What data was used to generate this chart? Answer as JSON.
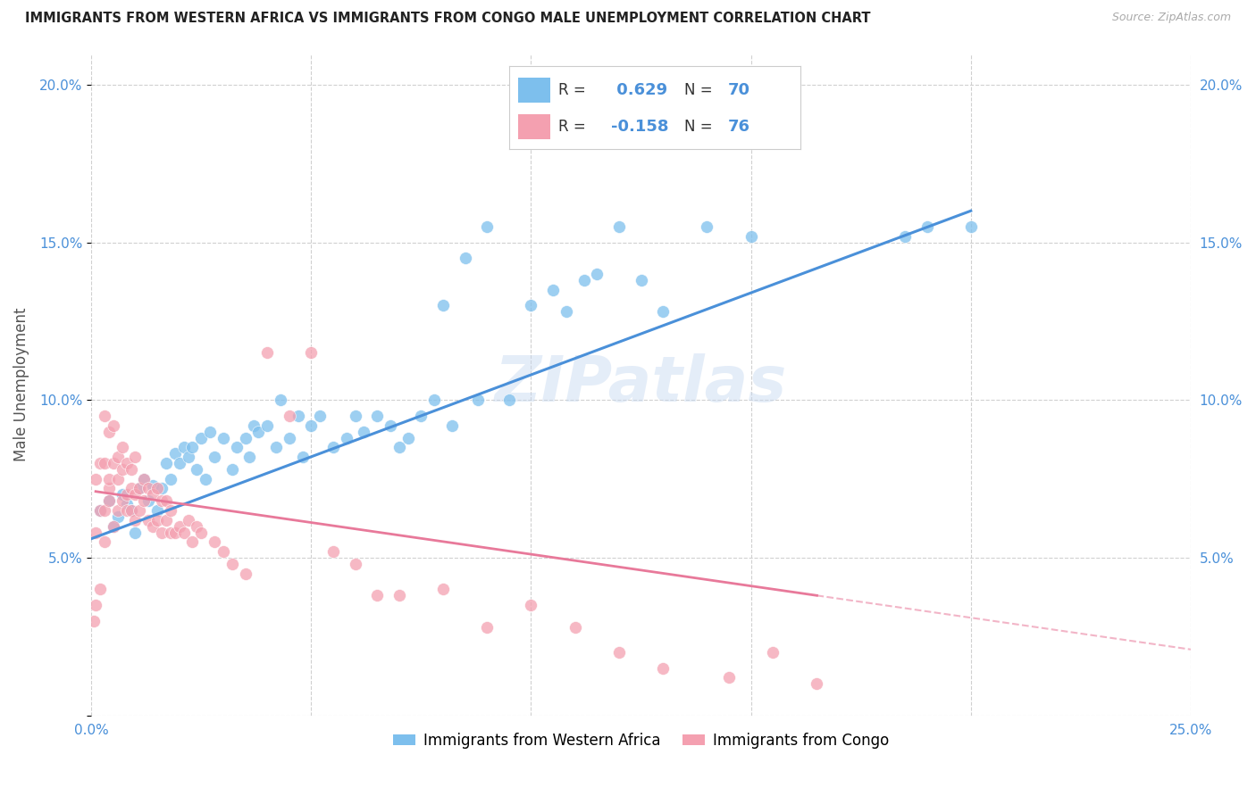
{
  "title": "IMMIGRANTS FROM WESTERN AFRICA VS IMMIGRANTS FROM CONGO MALE UNEMPLOYMENT CORRELATION CHART",
  "source": "Source: ZipAtlas.com",
  "ylabel": "Male Unemployment",
  "xlim": [
    0.0,
    0.25
  ],
  "ylim": [
    0.0,
    0.21
  ],
  "xticks": [
    0.0,
    0.05,
    0.1,
    0.15,
    0.2,
    0.25
  ],
  "yticks": [
    0.0,
    0.05,
    0.1,
    0.15,
    0.2
  ],
  "xticklabels": [
    "0.0%",
    "",
    "",
    "",
    "",
    "25.0%"
  ],
  "yticklabels": [
    "",
    "5.0%",
    "10.0%",
    "15.0%",
    "20.0%"
  ],
  "right_yticklabels": [
    "",
    "5.0%",
    "10.0%",
    "15.0%",
    "20.0%"
  ],
  "watermark": "ZIPatlas",
  "background_color": "#ffffff",
  "grid_color": "#d0d0d0",
  "blue_color": "#7dbfed",
  "pink_color": "#f4a0b0",
  "blue_line_color": "#4a90d9",
  "pink_line_color": "#e8799a",
  "R_blue": 0.629,
  "N_blue": 70,
  "R_pink": -0.158,
  "N_pink": 76,
  "blue_scatter_x": [
    0.002,
    0.004,
    0.005,
    0.006,
    0.007,
    0.008,
    0.009,
    0.01,
    0.011,
    0.012,
    0.013,
    0.014,
    0.015,
    0.016,
    0.017,
    0.018,
    0.019,
    0.02,
    0.021,
    0.022,
    0.023,
    0.024,
    0.025,
    0.026,
    0.027,
    0.028,
    0.03,
    0.032,
    0.033,
    0.035,
    0.036,
    0.037,
    0.038,
    0.04,
    0.042,
    0.043,
    0.045,
    0.047,
    0.048,
    0.05,
    0.052,
    0.055,
    0.058,
    0.06,
    0.062,
    0.065,
    0.068,
    0.07,
    0.072,
    0.075,
    0.078,
    0.08,
    0.082,
    0.085,
    0.088,
    0.09,
    0.095,
    0.1,
    0.105,
    0.108,
    0.112,
    0.115,
    0.12,
    0.125,
    0.13,
    0.14,
    0.15,
    0.185,
    0.19,
    0.2
  ],
  "blue_scatter_y": [
    0.065,
    0.068,
    0.06,
    0.063,
    0.07,
    0.067,
    0.065,
    0.058,
    0.072,
    0.075,
    0.068,
    0.073,
    0.065,
    0.072,
    0.08,
    0.075,
    0.083,
    0.08,
    0.085,
    0.082,
    0.085,
    0.078,
    0.088,
    0.075,
    0.09,
    0.082,
    0.088,
    0.078,
    0.085,
    0.088,
    0.082,
    0.092,
    0.09,
    0.092,
    0.085,
    0.1,
    0.088,
    0.095,
    0.082,
    0.092,
    0.095,
    0.085,
    0.088,
    0.095,
    0.09,
    0.095,
    0.092,
    0.085,
    0.088,
    0.095,
    0.1,
    0.13,
    0.092,
    0.145,
    0.1,
    0.155,
    0.1,
    0.13,
    0.135,
    0.128,
    0.138,
    0.14,
    0.155,
    0.138,
    0.128,
    0.155,
    0.152,
    0.152,
    0.155,
    0.155
  ],
  "pink_scatter_x": [
    0.0005,
    0.001,
    0.001,
    0.001,
    0.002,
    0.002,
    0.002,
    0.003,
    0.003,
    0.003,
    0.003,
    0.004,
    0.004,
    0.004,
    0.004,
    0.005,
    0.005,
    0.005,
    0.006,
    0.006,
    0.006,
    0.007,
    0.007,
    0.007,
    0.008,
    0.008,
    0.008,
    0.009,
    0.009,
    0.009,
    0.01,
    0.01,
    0.01,
    0.011,
    0.011,
    0.012,
    0.012,
    0.013,
    0.013,
    0.014,
    0.014,
    0.015,
    0.015,
    0.016,
    0.016,
    0.017,
    0.017,
    0.018,
    0.018,
    0.019,
    0.02,
    0.021,
    0.022,
    0.023,
    0.024,
    0.025,
    0.028,
    0.03,
    0.032,
    0.035,
    0.04,
    0.045,
    0.05,
    0.055,
    0.06,
    0.065,
    0.07,
    0.08,
    0.09,
    0.1,
    0.11,
    0.12,
    0.13,
    0.145,
    0.155,
    0.165
  ],
  "pink_scatter_y": [
    0.03,
    0.035,
    0.058,
    0.075,
    0.04,
    0.065,
    0.08,
    0.055,
    0.065,
    0.08,
    0.095,
    0.068,
    0.072,
    0.075,
    0.09,
    0.06,
    0.08,
    0.092,
    0.065,
    0.075,
    0.082,
    0.068,
    0.078,
    0.085,
    0.065,
    0.07,
    0.08,
    0.065,
    0.072,
    0.078,
    0.062,
    0.07,
    0.082,
    0.065,
    0.072,
    0.068,
    0.075,
    0.062,
    0.072,
    0.06,
    0.07,
    0.062,
    0.072,
    0.058,
    0.068,
    0.062,
    0.068,
    0.058,
    0.065,
    0.058,
    0.06,
    0.058,
    0.062,
    0.055,
    0.06,
    0.058,
    0.055,
    0.052,
    0.048,
    0.045,
    0.115,
    0.095,
    0.115,
    0.052,
    0.048,
    0.038,
    0.038,
    0.04,
    0.028,
    0.035,
    0.028,
    0.02,
    0.015,
    0.012,
    0.02,
    0.01
  ]
}
